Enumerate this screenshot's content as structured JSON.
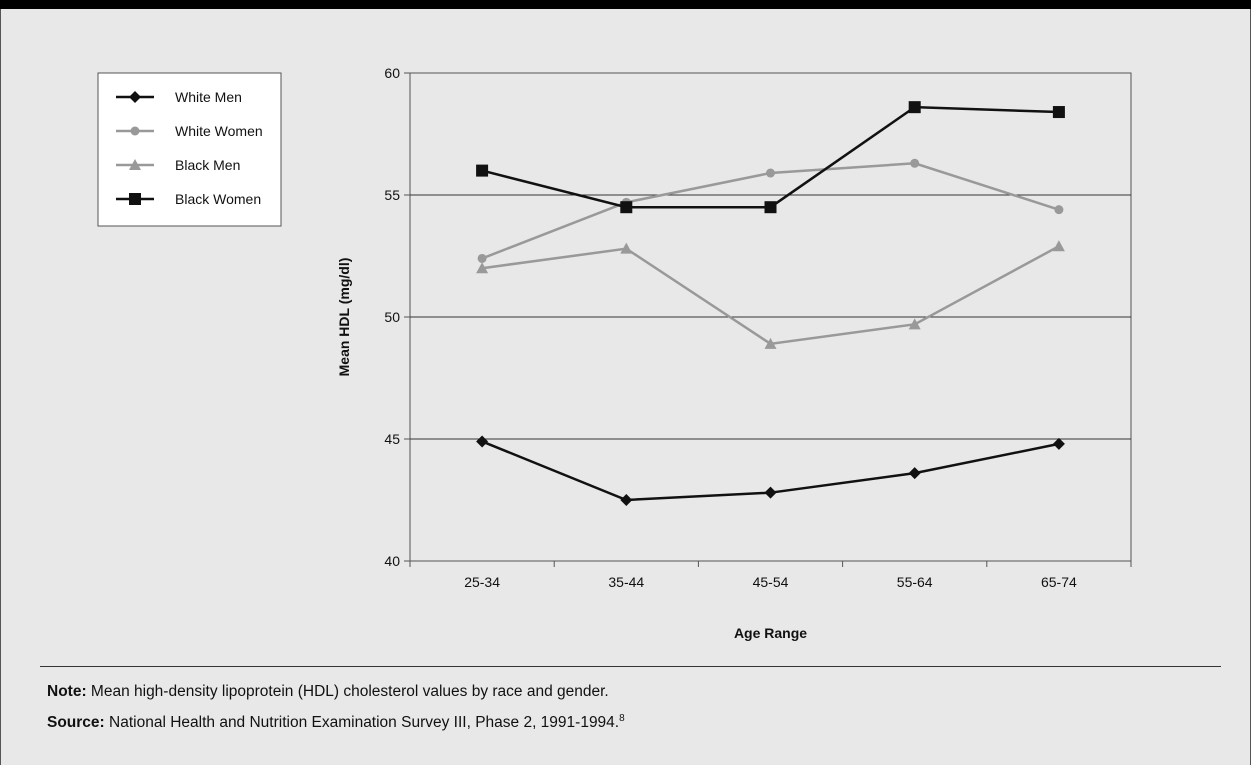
{
  "chart_data": {
    "type": "line",
    "categories": [
      "25-34",
      "35-44",
      "45-54",
      "55-64",
      "65-74"
    ],
    "series": [
      {
        "name": "White Men",
        "marker": "diamond",
        "color": "#111111",
        "values": [
          44.9,
          42.5,
          42.8,
          43.6,
          44.8
        ]
      },
      {
        "name": "White Women",
        "marker": "circle",
        "color": "#999999",
        "values": [
          52.4,
          54.7,
          55.9,
          56.3,
          54.4
        ]
      },
      {
        "name": "Black Men",
        "marker": "triangle",
        "color": "#999999",
        "values": [
          52.0,
          52.8,
          48.9,
          49.7,
          52.9
        ]
      },
      {
        "name": "Black Women",
        "marker": "square",
        "color": "#111111",
        "values": [
          56.0,
          54.5,
          54.5,
          58.6,
          58.4
        ]
      }
    ],
    "xlabel": "Age Range",
    "ylabel": "Mean HDL (mg/dl)",
    "ylim": [
      40,
      60
    ],
    "yticks": [
      40,
      45,
      50,
      55,
      60
    ],
    "grid": "horizontal",
    "legend": "top-left"
  },
  "notes": {
    "note_label": "Note:",
    "note_text": "Mean high-density lipoprotein (HDL) cholesterol values by race and gender.",
    "source_label": "Source:",
    "source_text": "National Health and Nutrition Examination Survey III, Phase 2, 1991-1994.",
    "source_ref": "8"
  }
}
